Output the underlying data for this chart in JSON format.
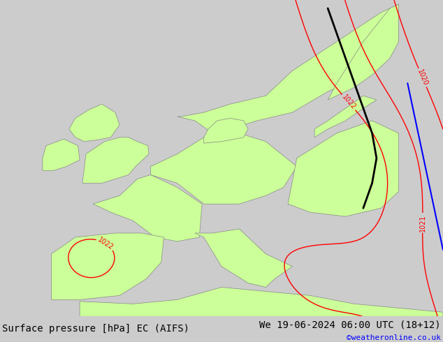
{
  "title_left": "Surface pressure [hPa] EC (AIFS)",
  "title_right": "We 19-06-2024 06:00 UTC (18+12)",
  "credit": "©weatheronline.co.uk",
  "background_sea": "#cccccc",
  "land_color": "#ccff99",
  "coast_color": "#888888",
  "bar_bg": "#b8dca8",
  "title_fontsize": 10,
  "credit_fontsize": 8,
  "lon_min": -15,
  "lon_max": 35,
  "lat_min": 34,
  "lat_max": 72
}
